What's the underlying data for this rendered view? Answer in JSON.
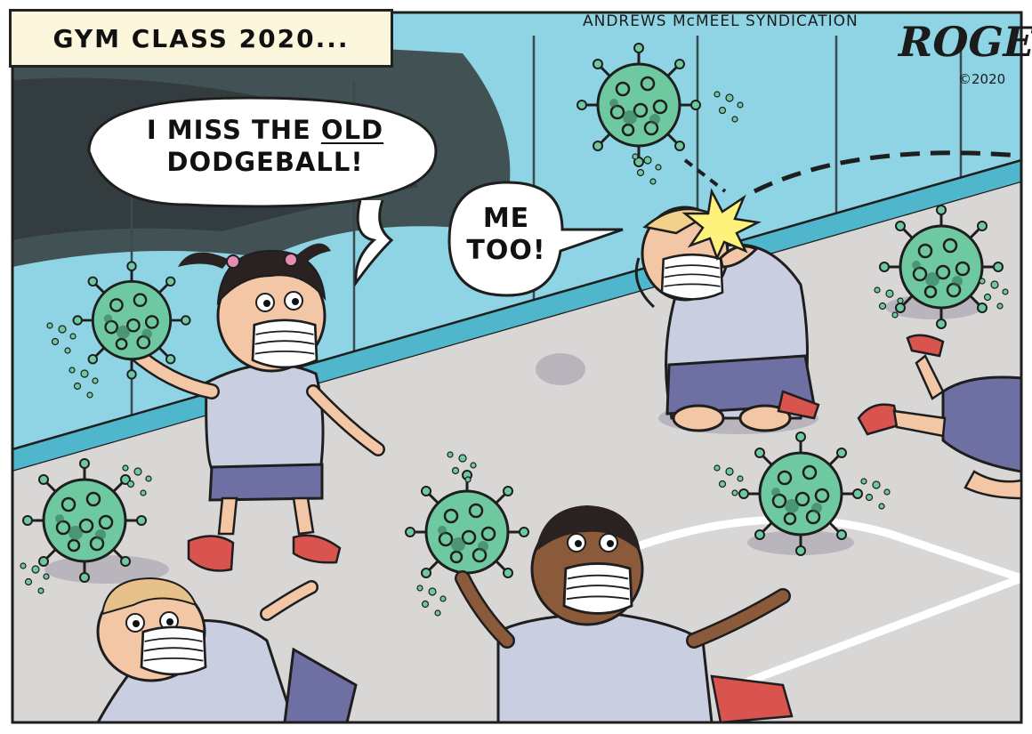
{
  "caption": {
    "text": "GYM CLASS 2020..."
  },
  "credit": {
    "syndication": "ANDREWS McMEEL SYNDICATION",
    "signature": "ROGERS",
    "copyright": "©2020"
  },
  "speech": {
    "girl_line1": "I MISS THE",
    "girl_old": "OLD",
    "girl_line2": "DODGEBALL!",
    "boy_reply_line1": "ME",
    "boy_reply_line2": "TOO!"
  },
  "colors": {
    "wall": "#8ed4e4",
    "floor": "#d9d6d6",
    "virus": "#6fc9a0",
    "virus_dots": "#2f6d55",
    "shorts": "#6e6fa3",
    "shirt": "#c9cfe0",
    "skin_light": "#f3c7a6",
    "skin_dark": "#8a5a3b",
    "caption_bg": "#fbf6dc"
  },
  "icons": [
    "virus-ball-icon",
    "face-mask-icon",
    "impact-star-icon"
  ]
}
